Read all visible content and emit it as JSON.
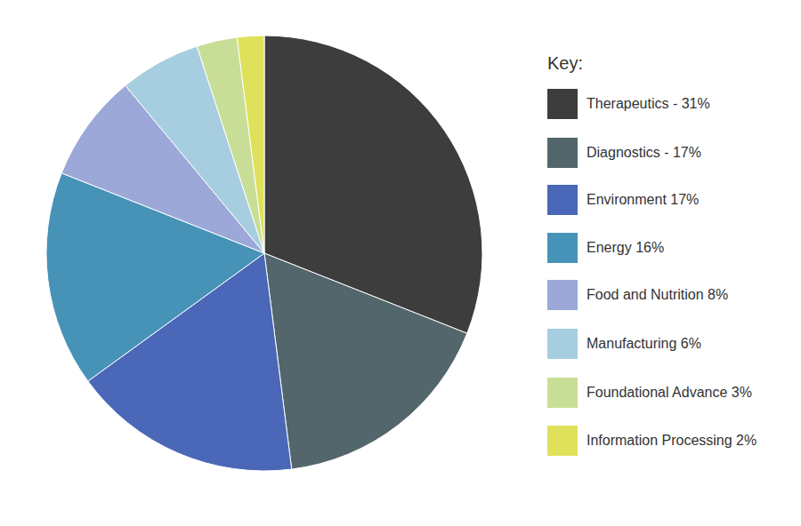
{
  "chart_data": {
    "type": "pie",
    "legend_title": "Key:",
    "categories": [
      "Therapeutics - 31%",
      "Diagnostics - 17%",
      "Environment 17%",
      "Energy 16%",
      "Food and Nutrition 8%",
      "Manufacturing 6%",
      "Foundational Advance 3%",
      "Information Processing 2%"
    ],
    "values": [
      31,
      17,
      17,
      16,
      8,
      6,
      3,
      2
    ],
    "colors": [
      "#3d3d3d",
      "#53666c",
      "#4a67b8",
      "#4793b8",
      "#9ba8d8",
      "#a7cde0",
      "#c8de97",
      "#dfe15a"
    ],
    "legend": "right"
  }
}
